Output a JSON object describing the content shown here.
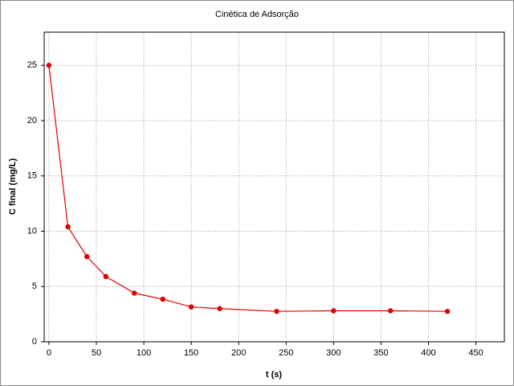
{
  "chart_data": {
    "type": "line",
    "title": "Cinética de Adsorção",
    "x_label": "t (s)",
    "y_label": "C final (mg/L)",
    "x": [
      0,
      20,
      40,
      60,
      90,
      120,
      150,
      180,
      240,
      300,
      360,
      420
    ],
    "series": [
      {
        "name": "C final",
        "color": "#e00000",
        "values": [
          25.0,
          10.4,
          7.7,
          5.9,
          4.4,
          3.85,
          3.15,
          3.0,
          2.75,
          2.8,
          2.8,
          2.75
        ]
      }
    ],
    "xlim": [
      -5,
      480
    ],
    "xticks": [
      0,
      50,
      100,
      150,
      200,
      250,
      300,
      350,
      400,
      450
    ],
    "ylim": [
      0,
      28
    ],
    "yticks": [
      0,
      5,
      10,
      15,
      20,
      25
    ],
    "grid": true
  }
}
